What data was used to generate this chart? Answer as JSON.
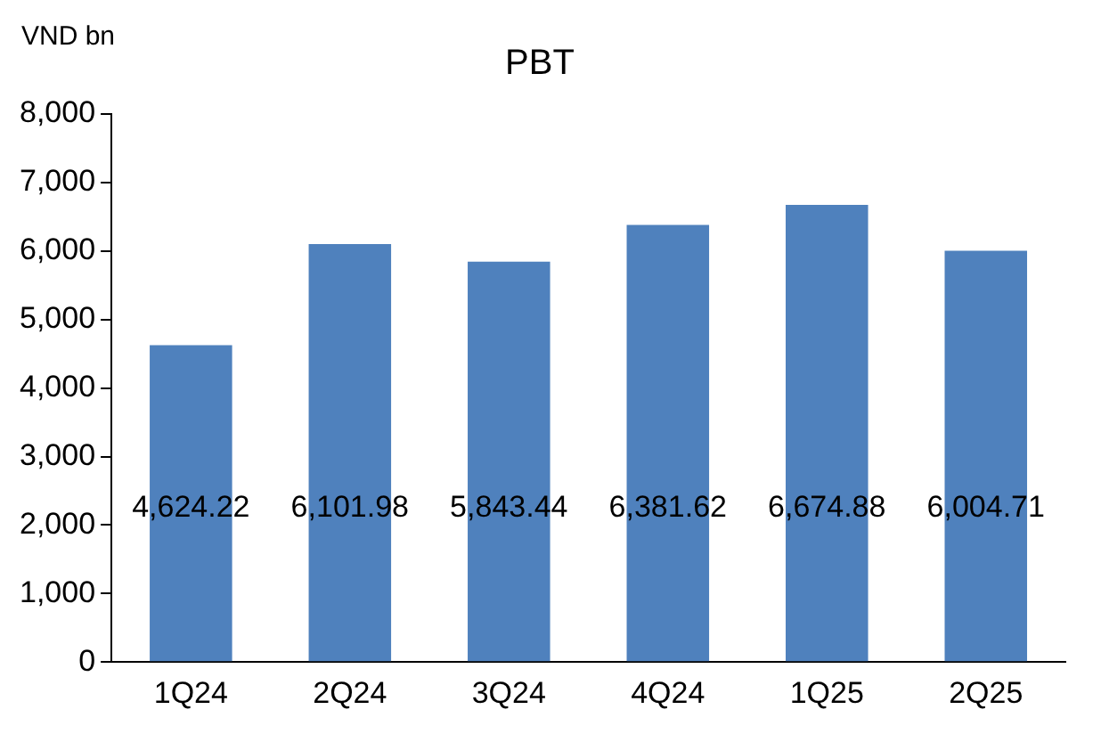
{
  "chart_data": {
    "type": "bar",
    "title": "PBT",
    "ylabel": "VND bn",
    "categories": [
      "1Q24",
      "2Q24",
      "3Q24",
      "4Q24",
      "1Q25",
      "2Q25"
    ],
    "values": [
      4624.22,
      6101.98,
      5843.44,
      6381.62,
      6674.88,
      6004.71
    ],
    "value_labels": [
      "4,624.22",
      "6,101.98",
      "5,843.44",
      "6,381.62",
      "6,674.88",
      "6,004.71"
    ],
    "color": "#4f81bd",
    "ylim": [
      0,
      8000
    ],
    "yticks": [
      {
        "value": 0,
        "label": "0"
      },
      {
        "value": 1000,
        "label": "1,000"
      },
      {
        "value": 2000,
        "label": "2,000"
      },
      {
        "value": 3000,
        "label": "3,000"
      },
      {
        "value": 4000,
        "label": "4,000"
      },
      {
        "value": 5000,
        "label": "5,000"
      },
      {
        "value": 6000,
        "label": "6,000"
      },
      {
        "value": 7000,
        "label": "7,000"
      },
      {
        "value": 8000,
        "label": "8,000"
      }
    ],
    "grid": false,
    "legend": false
  }
}
